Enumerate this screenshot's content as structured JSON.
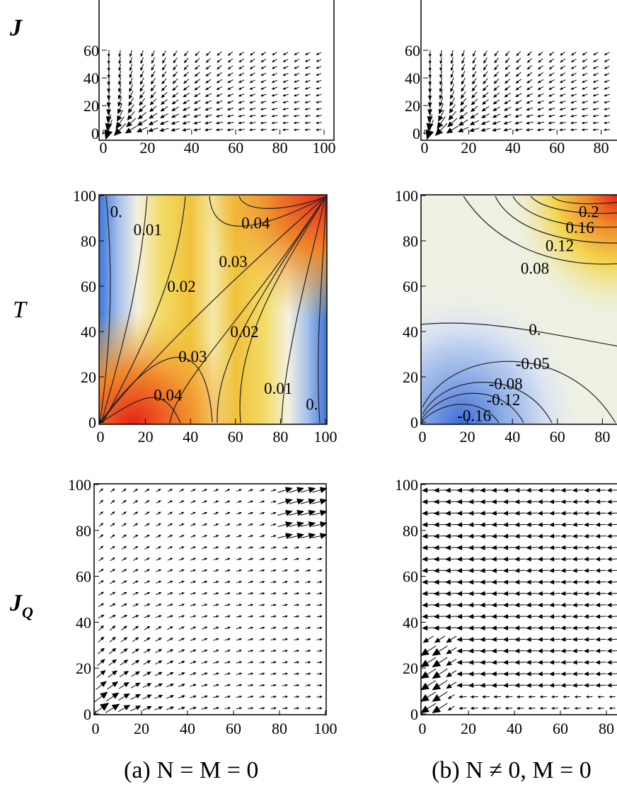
{
  "row_labels": {
    "flux": "J",
    "temperature": "T",
    "heat_flux_main": "J",
    "heat_flux_sub": "Q"
  },
  "captions": {
    "a": "(a) N = M = 0",
    "b": "(b) N ≠ 0, M = 0"
  },
  "colors": {
    "cold": "#3a6fd8",
    "mid": "#f3f3ea",
    "warm": "#f3d23c",
    "hot": "#e8281c",
    "arrow": "#000000"
  },
  "chart_data": [
    {
      "id": "J-a",
      "type": "vector-field",
      "title": "",
      "xlim": [
        0,
        100
      ],
      "ylim": [
        0,
        100
      ],
      "xticks": [
        "0",
        "20",
        "40",
        "60",
        "80",
        "100"
      ],
      "yticks": [
        "0",
        "20",
        "40",
        "60"
      ],
      "description": "flux converging toward the origin"
    },
    {
      "id": "J-b",
      "type": "vector-field",
      "title": "",
      "xlim": [
        0,
        100
      ],
      "ylim": [
        0,
        100
      ],
      "xticks": [
        "0",
        "20",
        "40",
        "60",
        "80"
      ],
      "yticks": [
        "0",
        "20",
        "40",
        "60"
      ],
      "description": "flux converging toward the origin"
    },
    {
      "id": "T-a",
      "type": "contour",
      "title": "",
      "xlim": [
        0,
        100
      ],
      "ylim": [
        0,
        100
      ],
      "xticks": [
        "0",
        "20",
        "40",
        "60",
        "80",
        "100"
      ],
      "yticks": [
        "0",
        "20",
        "40",
        "60",
        "80",
        "100"
      ],
      "contour_labels": [
        {
          "text": "0.",
          "x": 7,
          "y": 93
        },
        {
          "text": "0.01",
          "x": 21,
          "y": 85
        },
        {
          "text": "0.04",
          "x": 69,
          "y": 88
        },
        {
          "text": "0.03",
          "x": 59,
          "y": 71
        },
        {
          "text": "0.02",
          "x": 36,
          "y": 60
        },
        {
          "text": "0.02",
          "x": 64,
          "y": 40
        },
        {
          "text": "0.03",
          "x": 41,
          "y": 29
        },
        {
          "text": "0.04",
          "x": 30,
          "y": 12
        },
        {
          "text": "0.01",
          "x": 79,
          "y": 15
        },
        {
          "text": "0.",
          "x": 94,
          "y": 8
        }
      ]
    },
    {
      "id": "T-b",
      "type": "contour",
      "title": "",
      "xlim": [
        0,
        100
      ],
      "ylim": [
        0,
        100
      ],
      "xticks": [
        "0",
        "20",
        "40",
        "60",
        "80"
      ],
      "yticks": [
        "0",
        "20",
        "40",
        "60",
        "80",
        "100"
      ],
      "contour_labels": [
        {
          "text": "0.2",
          "x": 74,
          "y": 93
        },
        {
          "text": "0.16",
          "x": 70,
          "y": 86
        },
        {
          "text": "0.12",
          "x": 61,
          "y": 78
        },
        {
          "text": "0.08",
          "x": 50,
          "y": 68
        },
        {
          "text": "0.",
          "x": 50,
          "y": 41
        },
        {
          "text": "-0.05",
          "x": 49,
          "y": 26
        },
        {
          "text": "-0.08",
          "x": 37,
          "y": 17
        },
        {
          "text": "-0.12",
          "x": 36,
          "y": 10
        },
        {
          "text": "-0.16",
          "x": 23,
          "y": 3
        }
      ]
    },
    {
      "id": "JQ-a",
      "type": "vector-field",
      "title": "",
      "xlim": [
        0,
        100
      ],
      "ylim": [
        0,
        100
      ],
      "xticks": [
        "0",
        "20",
        "40",
        "60",
        "80",
        "100"
      ],
      "yticks": [
        "0",
        "20",
        "40",
        "60",
        "80",
        "100"
      ],
      "description": "heat flux emerging from the origin corner toward the top-right"
    },
    {
      "id": "JQ-b",
      "type": "vector-field",
      "title": "",
      "xlim": [
        0,
        100
      ],
      "ylim": [
        0,
        100
      ],
      "xticks": [
        "0",
        "20",
        "40",
        "60",
        "80"
      ],
      "yticks": [
        "0",
        "20",
        "40",
        "60",
        "80",
        "100"
      ],
      "description": "heat flux flowing leftward toward the origin"
    }
  ]
}
